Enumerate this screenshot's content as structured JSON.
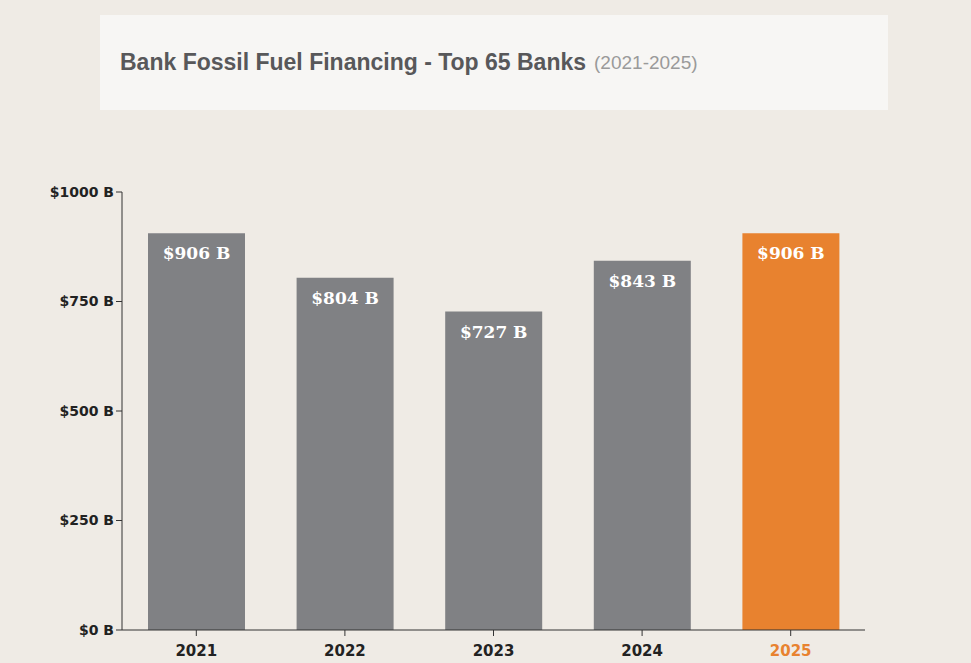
{
  "chart_data": {
    "type": "bar",
    "title": "Bank Fossil Fuel Financing - Top 65 Banks",
    "subtitle": "(2021-2025)",
    "categories": [
      "2021",
      "2022",
      "2023",
      "2024",
      "2025"
    ],
    "values": [
      906,
      804,
      727,
      843,
      906
    ],
    "value_labels": [
      "$906 B",
      "$804 B",
      "$727 B",
      "$843 B",
      "$906 B"
    ],
    "colors": [
      "#808184",
      "#808184",
      "#808184",
      "#808184",
      "#e8822f"
    ],
    "ylim": [
      0,
      1000
    ],
    "yticks": [
      {
        "value": 0,
        "label": "$0 B"
      },
      {
        "value": 250,
        "label": "$250 B"
      },
      {
        "value": 500,
        "label": "$500 B"
      },
      {
        "value": 750,
        "label": "$750 B"
      },
      {
        "value": 1000,
        "label": "$1000 B"
      }
    ],
    "grid": false,
    "data_labels": true
  }
}
